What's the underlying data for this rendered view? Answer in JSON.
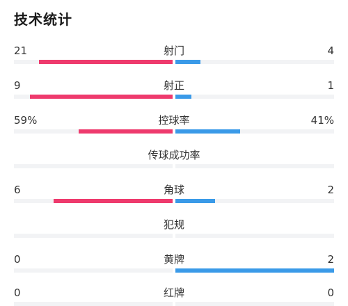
{
  "header": {
    "title": "技术统计"
  },
  "colors": {
    "home": "#ee3a6d",
    "away": "#3a9ae8",
    "track": "#f2f3f5"
  },
  "stats": [
    {
      "label": "射门",
      "home": "21",
      "away": "4",
      "home_share": 0.84,
      "away_share": 0.16
    },
    {
      "label": "射正",
      "home": "9",
      "away": "1",
      "home_share": 0.9,
      "away_share": 0.1
    },
    {
      "label": "控球率",
      "home": "59%",
      "away": "41%",
      "home_share": 0.59,
      "away_share": 0.41
    },
    {
      "label": "传球成功率",
      "home": "",
      "away": "",
      "home_share": 0,
      "away_share": 0
    },
    {
      "label": "角球",
      "home": "6",
      "away": "2",
      "home_share": 0.75,
      "away_share": 0.25
    },
    {
      "label": "犯规",
      "home": "",
      "away": "",
      "home_share": 0,
      "away_share": 0
    },
    {
      "label": "黄牌",
      "home": "0",
      "away": "2",
      "home_share": 0,
      "away_share": 1.0
    },
    {
      "label": "红牌",
      "home": "0",
      "away": "0",
      "home_share": 0,
      "away_share": 0
    }
  ]
}
